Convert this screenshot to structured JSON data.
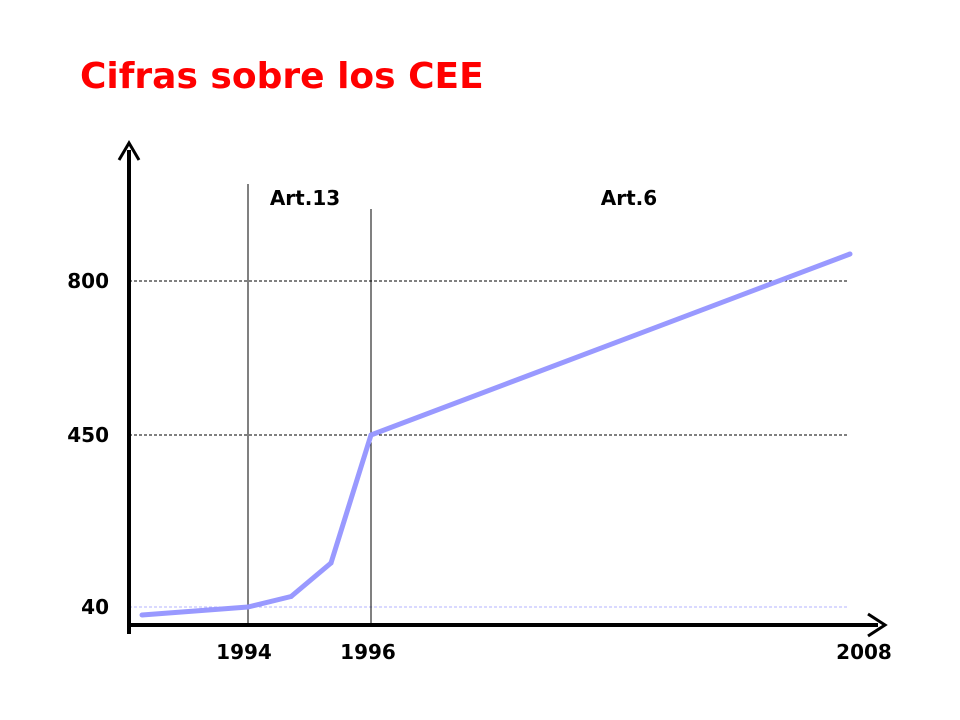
{
  "title": "Cifras sobre los CEE",
  "colors": {
    "title": "#ff0000",
    "line": "#9999ff",
    "axis": "#000000",
    "grid": "#000000",
    "grid_light": "#b3b3ff"
  },
  "chart_data": {
    "type": "line",
    "title": "Cifras sobre los CEE",
    "xlabel": "",
    "ylabel": "",
    "grid": true,
    "x_ticks": [
      1994,
      1996,
      2008
    ],
    "y_ticks": [
      40,
      450,
      800
    ],
    "series": [
      {
        "x": [
          1992,
          1994,
          1994.7,
          1995.35,
          1996,
          2008
        ],
        "y": [
          18,
          40,
          65,
          145,
          450,
          870
        ]
      }
    ],
    "annotations": [
      {
        "label": "Art.13",
        "x": 1994
      },
      {
        "label": "Art.6",
        "x": 1996
      }
    ]
  }
}
